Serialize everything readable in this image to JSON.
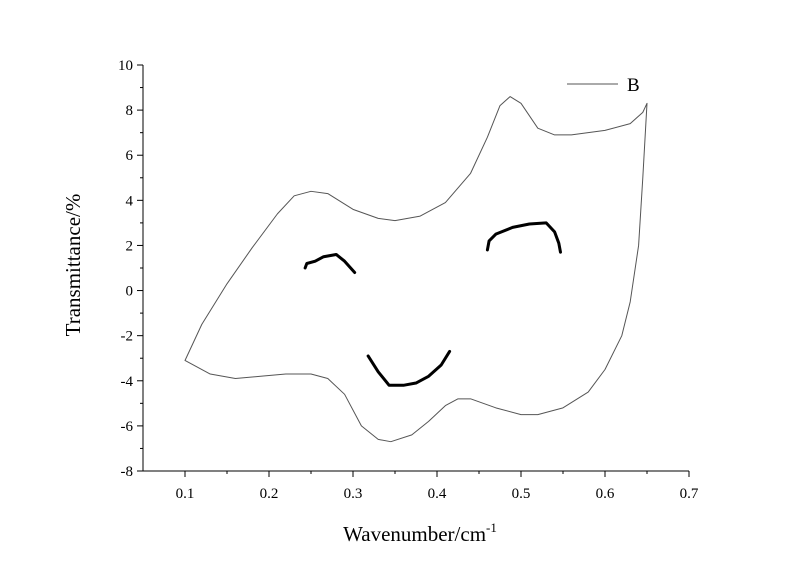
{
  "chart_data": {
    "type": "line",
    "x_label": "Wavenumber/cm",
    "x_label_superscript": "-1",
    "y_label": "Transmittance/%",
    "xlim": [
      0.05,
      0.7
    ],
    "ylim": [
      -8,
      10
    ],
    "xticks": [
      0.1,
      0.2,
      0.3,
      0.4,
      0.5,
      0.6,
      0.7
    ],
    "yticks": [
      -8,
      -6,
      -4,
      -2,
      0,
      2,
      4,
      6,
      8,
      10
    ],
    "legend": "top-right",
    "series": [
      {
        "name": "B",
        "color": "#555555",
        "line_width": 1,
        "x": [
          0.65,
          0.645,
          0.64,
          0.63,
          0.62,
          0.6,
          0.58,
          0.55,
          0.52,
          0.5,
          0.47,
          0.44,
          0.425,
          0.41,
          0.39,
          0.37,
          0.345,
          0.33,
          0.31,
          0.29,
          0.27,
          0.25,
          0.22,
          0.19,
          0.16,
          0.13,
          0.1,
          0.12,
          0.15,
          0.18,
          0.21,
          0.23,
          0.25,
          0.27,
          0.3,
          0.33,
          0.35,
          0.38,
          0.41,
          0.44,
          0.46,
          0.475,
          0.487,
          0.5,
          0.52,
          0.54,
          0.56,
          0.6,
          0.63,
          0.645,
          0.65
        ],
        "values": [
          8.3,
          5,
          2,
          -0.5,
          -2,
          -3.5,
          -4.5,
          -5.2,
          -5.5,
          -5.5,
          -5.2,
          -4.8,
          -4.8,
          -5.1,
          -5.8,
          -6.4,
          -6.7,
          -6.6,
          -6,
          -4.6,
          -3.9,
          -3.7,
          -3.7,
          -3.8,
          -3.9,
          -3.7,
          -3.1,
          -1.5,
          0.3,
          1.9,
          3.4,
          4.2,
          4.4,
          4.3,
          3.6,
          3.2,
          3.1,
          3.3,
          3.9,
          5.2,
          6.8,
          8.2,
          8.6,
          8.3,
          7.2,
          6.9,
          6.9,
          7.1,
          7.4,
          7.9,
          8.3
        ]
      },
      {
        "color": "#000000",
        "line_width": 3,
        "x": [
          0.243,
          0.245,
          0.255,
          0.265,
          0.28,
          0.29,
          0.302
        ],
        "values": [
          1.0,
          1.2,
          1.3,
          1.5,
          1.6,
          1.3,
          0.8
        ]
      },
      {
        "color": "#000000",
        "line_width": 3,
        "x": [
          0.46,
          0.462,
          0.47,
          0.49,
          0.51,
          0.53,
          0.54,
          0.545,
          0.547
        ],
        "values": [
          1.8,
          2.2,
          2.5,
          2.8,
          2.95,
          3.0,
          2.6,
          2.1,
          1.7
        ]
      },
      {
        "color": "#000000",
        "line_width": 3,
        "x": [
          0.318,
          0.33,
          0.343,
          0.36,
          0.375,
          0.39,
          0.405,
          0.415
        ],
        "values": [
          -2.9,
          -3.6,
          -4.2,
          -4.2,
          -4.1,
          -3.8,
          -3.3,
          -2.7
        ]
      }
    ]
  }
}
